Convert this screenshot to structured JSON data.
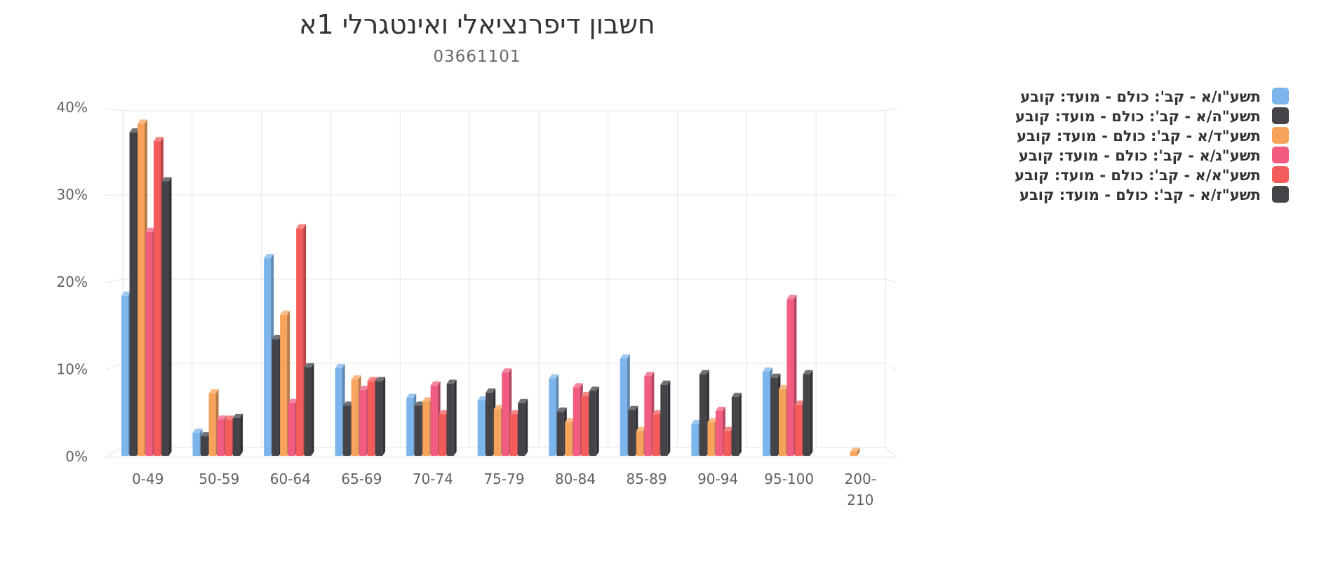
{
  "chart_data": {
    "type": "bar",
    "title": "חשבון דיפרנציאלי ואינטגרלי 1א",
    "subtitle": "03661101",
    "xlabel": "",
    "ylabel": "",
    "ylim": [
      0,
      40
    ],
    "yticks": [
      "0%",
      "10%",
      "20%",
      "30%",
      "40%"
    ],
    "categories": [
      "0-49",
      "50-59",
      "60-64",
      "65-69",
      "70-74",
      "75-79",
      "80-84",
      "85-89",
      "90-94",
      "95-100",
      "200-210"
    ],
    "category_labels": [
      [
        "0-49"
      ],
      [
        "50-59"
      ],
      [
        "60-64"
      ],
      [
        "65-69"
      ],
      [
        "70-74"
      ],
      [
        "75-79"
      ],
      [
        "80-84"
      ],
      [
        "85-89"
      ],
      [
        "90-94"
      ],
      [
        "95-100"
      ],
      [
        "200-",
        "210"
      ]
    ],
    "legend_position": "top-right",
    "grid": true,
    "three_d": true,
    "series": [
      {
        "name": "תשע\"ו/א - קב': כולם - מועד: קובע",
        "color": "#7cb5ec",
        "values": [
          18.5,
          2.8,
          22.8,
          10.2,
          6.8,
          6.5,
          9.0,
          11.3,
          3.8,
          9.8,
          0
        ]
      },
      {
        "name": "תשע\"ה/א - קב': כולם - מועד: קובע",
        "color": "#434348",
        "values": [
          37.2,
          2.4,
          13.5,
          5.9,
          5.9,
          7.4,
          5.2,
          5.4,
          9.5,
          9.1,
          0
        ]
      },
      {
        "name": "תשע\"ד/א - קב': כולם - מועד: קובע",
        "color": "#f7a35c",
        "values": [
          38.2,
          7.3,
          16.3,
          8.9,
          6.4,
          5.5,
          4.0,
          3.0,
          4.0,
          7.8,
          0.6
        ]
      },
      {
        "name": "תשע\"ג/א - קב': כולם - מועד: קובע",
        "color": "#f15c80",
        "values": [
          25.8,
          4.3,
          6.2,
          7.7,
          8.2,
          9.7,
          8.0,
          9.3,
          5.3,
          18.1,
          0
        ]
      },
      {
        "name": "תשע\"א/א - קב': כולם - מועד: קובע",
        "color": "#f45b5b",
        "values": [
          36.2,
          4.3,
          26.2,
          8.7,
          4.9,
          4.9,
          7.0,
          4.9,
          3.0,
          6.0,
          0
        ]
      },
      {
        "name": "תשע\"ז/א - קב': כולם - מועד: קובע",
        "color": "#434348",
        "values": [
          31.6,
          4.5,
          10.3,
          8.7,
          8.4,
          6.2,
          7.6,
          8.3,
          6.9,
          9.5,
          0
        ]
      }
    ]
  }
}
